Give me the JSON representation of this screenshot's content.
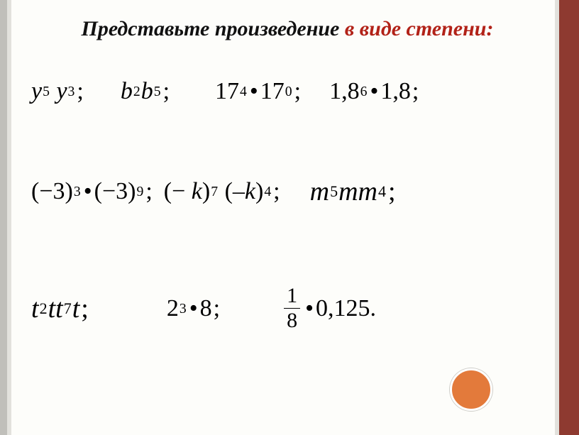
{
  "title": {
    "part1": "Представьте произведение ",
    "accent": "в виде степени",
    "colon": ":"
  },
  "colors": {
    "accent": "#b22218",
    "right_bar": "#8e3a30",
    "circle_fill": "#e37a3b"
  },
  "expressions": {
    "row1": [
      "y^5 y^3 ;",
      "b^2 b^5 ;",
      "17^4 · 17^0 ;",
      "1,8^6 · 1,8;"
    ],
    "row2": [
      "(-3)^3 · (-3)^9 ;",
      "(-k)^7 (-k)^4 ;",
      "m^5 m m^4 ;"
    ],
    "row3": [
      "t^2 t t^7 t ;",
      "2^3 · 8;",
      "1/8 · 0,125."
    ]
  }
}
